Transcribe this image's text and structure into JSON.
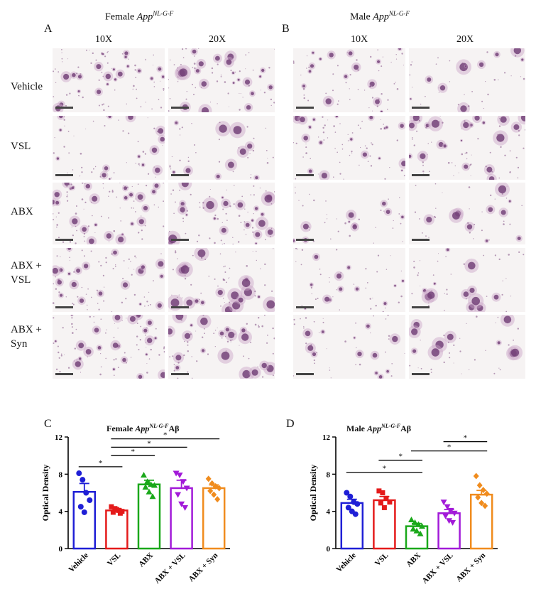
{
  "figure": {
    "panel_a": {
      "letter": "A",
      "title_prefix": "Female ",
      "title_italic": "App",
      "title_sup": "NL-G-F",
      "col_10x": "10X",
      "col_20x": "20X"
    },
    "panel_b": {
      "letter": "B",
      "title_prefix": "Male ",
      "title_italic": "App",
      "title_sup": "NL-G-F",
      "col_10x": "10X",
      "col_20x": "20X"
    },
    "row_labels": [
      {
        "line1": "Vehicle",
        "line2": ""
      },
      {
        "line1": "VSL",
        "line2": ""
      },
      {
        "line1": "ABX",
        "line2": ""
      },
      {
        "line1": "ABX +",
        "line2": "VSL"
      },
      {
        "line1": "ABX +",
        "line2": "Syn"
      }
    ],
    "panel_c": {
      "letter": "C",
      "title_prefix": "Female ",
      "title_italic": "App",
      "title_sup": "NL-G-F",
      "title_suffix": "Aβ"
    },
    "panel_d": {
      "letter": "D",
      "title_prefix": "Male ",
      "title_italic": "App",
      "title_sup": "NL-G-F",
      "title_suffix": "Aβ"
    }
  },
  "chart_data": [
    {
      "type": "bar",
      "panel": "C",
      "ylabel": "Optical Density",
      "ylim": [
        0,
        12
      ],
      "yticks": [
        0,
        4,
        8,
        12
      ],
      "categories": [
        "Vehicle",
        "VSL",
        "ABX",
        "ABX + VSL",
        "ABX + Syn"
      ],
      "colors": [
        "#1f1fd6",
        "#e41a1a",
        "#1aa81a",
        "#a21ad8",
        "#f08c1e"
      ],
      "markers": [
        "circle",
        "square",
        "triangle-up",
        "triangle-down",
        "diamond"
      ],
      "means": [
        6.1,
        4.1,
        6.9,
        6.5,
        6.5
      ],
      "sem": [
        0.9,
        0.2,
        0.45,
        0.85,
        0.35
      ],
      "points": [
        [
          8.1,
          7.4,
          6.0,
          5.2,
          4.5,
          3.9
        ],
        [
          4.5,
          4.3,
          4.1,
          4.0,
          3.9,
          4.2,
          3.8
        ],
        [
          7.9,
          7.2,
          6.9,
          6.8,
          6.6,
          6.1,
          5.6
        ],
        [
          8.1,
          7.9,
          7.2,
          6.5,
          5.8,
          4.8,
          4.4
        ],
        [
          7.5,
          7.0,
          6.7,
          6.5,
          6.2,
          5.8,
          5.3
        ]
      ],
      "significance": [
        {
          "from": 0,
          "to": 1,
          "label": "*"
        },
        {
          "from": 1,
          "to": 2,
          "label": "*"
        },
        {
          "from": 1,
          "to": 3,
          "label": "*"
        },
        {
          "from": 1,
          "to": 4,
          "label": "*"
        }
      ]
    },
    {
      "type": "bar",
      "panel": "D",
      "ylabel": "Optical Density",
      "ylim": [
        0,
        12
      ],
      "yticks": [
        0,
        4,
        8,
        12
      ],
      "categories": [
        "Vehicle",
        "VSL",
        "ABX",
        "ABX + VSL",
        "ABX + Syn"
      ],
      "colors": [
        "#1f1fd6",
        "#e41a1a",
        "#1aa81a",
        "#a21ad8",
        "#f08c1e"
      ],
      "markers": [
        "circle",
        "square",
        "triangle-up",
        "triangle-down",
        "diamond"
      ],
      "means": [
        4.9,
        5.2,
        2.4,
        3.8,
        5.8
      ],
      "sem": [
        0.4,
        0.4,
        0.3,
        0.4,
        0.45
      ],
      "points": [
        [
          6.0,
          5.6,
          5.0,
          4.8,
          4.4,
          4.0,
          3.7
        ],
        [
          6.2,
          6.0,
          5.4,
          5.0,
          4.9,
          4.4
        ],
        [
          3.1,
          2.8,
          2.6,
          2.4,
          2.1,
          1.9,
          1.6
        ],
        [
          5.0,
          4.5,
          4.1,
          3.8,
          3.5,
          3.0,
          2.8
        ],
        [
          7.8,
          6.8,
          6.3,
          5.9,
          5.5,
          4.9,
          4.6
        ]
      ],
      "significance": [
        {
          "from": 0,
          "to": 2,
          "label": "*"
        },
        {
          "from": 1,
          "to": 2,
          "label": "*"
        },
        {
          "from": 2,
          "to": 4,
          "label": "*"
        },
        {
          "from": 3,
          "to": 4,
          "label": "*"
        }
      ]
    }
  ]
}
